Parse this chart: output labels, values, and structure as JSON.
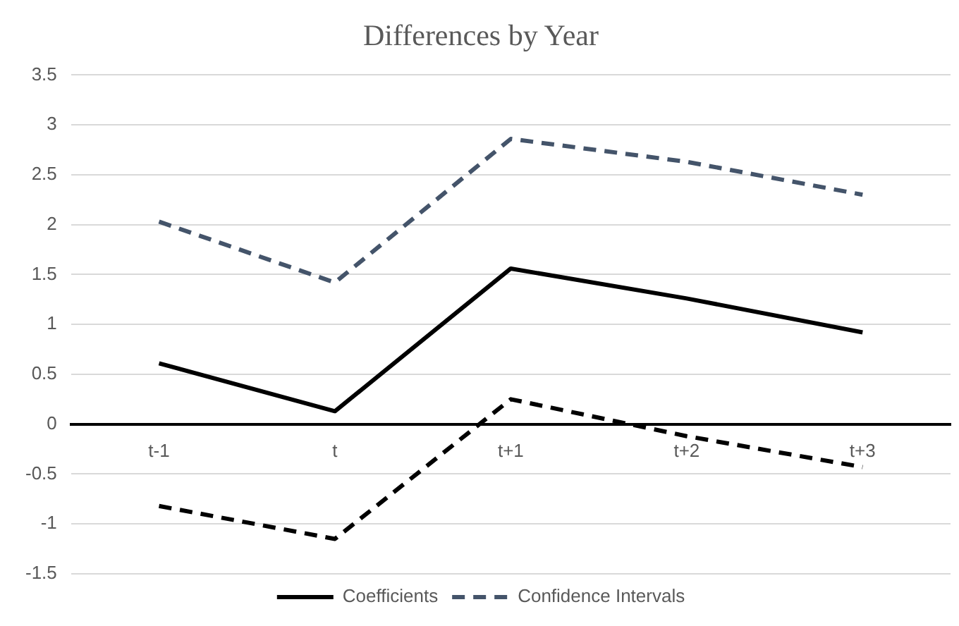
{
  "chart_data": {
    "type": "line",
    "title": "Differences by Year",
    "categories": [
      "t-1",
      "t",
      "t+1",
      "t+2",
      "t+3"
    ],
    "series": [
      {
        "name": "Coefficients",
        "color": "#000000",
        "line_style": "solid",
        "values": [
          0.61,
          0.13,
          1.56,
          1.26,
          0.92
        ]
      },
      {
        "name": "Confidence Intervals",
        "color": "#44546a",
        "line_style": "dashed",
        "values": [
          2.03,
          1.42,
          2.86,
          2.63,
          2.3
        ]
      },
      {
        "color": "#000000",
        "line_style": "dashed",
        "values": [
          -0.82,
          -1.15,
          0.25,
          -0.12,
          -0.43
        ]
      }
    ],
    "ylim": [
      -1.5,
      3.5
    ],
    "yticks": [
      -1.5,
      -1,
      -0.5,
      0,
      0.5,
      1,
      1.5,
      2,
      2.5,
      3,
      3.5
    ],
    "grid": "y",
    "legend": "bottom",
    "marker": "none"
  }
}
